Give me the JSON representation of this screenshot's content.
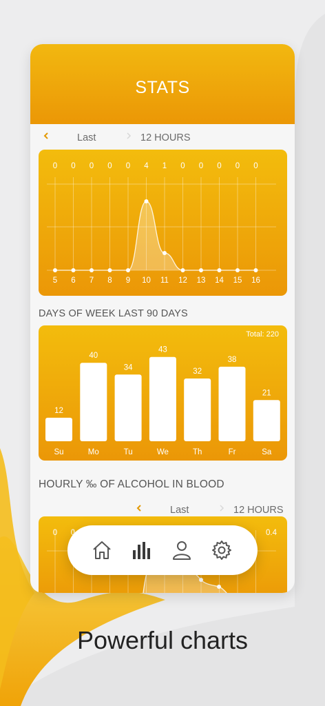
{
  "screen": {
    "title": "STATS",
    "caption": "Powerful charts"
  },
  "nav1": {
    "period_label": "Last",
    "value_label": "12 HOURS"
  },
  "section2": {
    "title": "DAYS OF WEEK LAST 90 DAYS"
  },
  "section3": {
    "title": "HOURLY ‰ OF ALCOHOL IN BLOOD"
  },
  "nav3": {
    "period_label": "Last",
    "value_label": "12 HOURS"
  },
  "tabbar": {
    "items": [
      {
        "name": "home",
        "icon": "home-icon"
      },
      {
        "name": "stats",
        "icon": "bar-chart-icon",
        "active": true
      },
      {
        "name": "profile",
        "icon": "user-icon"
      },
      {
        "name": "settings",
        "icon": "gear-icon"
      }
    ]
  },
  "colors": {
    "accent": "#f0a80a",
    "accent_light": "#f3bc0d",
    "accent_dark": "#eb9707",
    "text": "#555555"
  },
  "chart_data": [
    {
      "type": "area",
      "x": [
        "5",
        "6",
        "7",
        "8",
        "9",
        "10",
        "11",
        "12",
        "13",
        "14",
        "15",
        "16"
      ],
      "top_labels": [
        "0",
        "0",
        "0",
        "0",
        "0",
        "4",
        "1",
        "0",
        "0",
        "0",
        "0",
        "0"
      ],
      "values": [
        0,
        0,
        0,
        0,
        0,
        4,
        1,
        0,
        0,
        0,
        0,
        0
      ],
      "ylim": [
        0,
        5
      ],
      "grid": true
    },
    {
      "type": "bar",
      "categories": [
        "Su",
        "Mo",
        "Tu",
        "We",
        "Th",
        "Fr",
        "Sa"
      ],
      "values": [
        12,
        40,
        34,
        43,
        32,
        38,
        21
      ],
      "total_label": "Total: 220",
      "ylim": [
        0,
        45
      ]
    },
    {
      "type": "area",
      "top_labels_visible": [
        "0",
        "0",
        "0.4"
      ],
      "partial": true
    }
  ]
}
